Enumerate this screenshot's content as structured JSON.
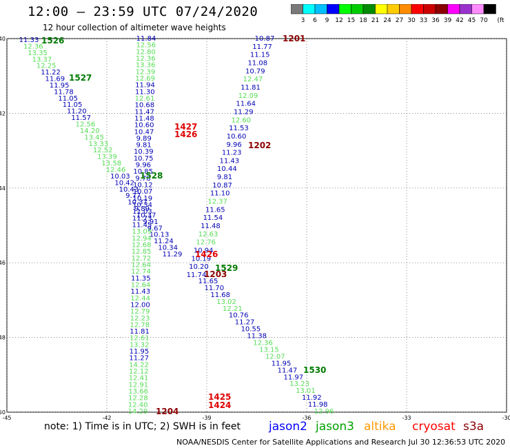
{
  "header": {
    "title": "12:00 – 23:59 UTC 07/24/2020",
    "subtitle": "12 hour collection of altimeter wave heights"
  },
  "colorbar": {
    "unit": "(ft)",
    "ticks": [
      "3",
      "6",
      "9",
      "12",
      "15",
      "18",
      "21",
      "24",
      "27",
      "30",
      "33",
      "36",
      "39",
      "42",
      "45",
      "70"
    ],
    "colors": [
      "#7a7a7a",
      "#00ffff",
      "#00bfff",
      "#0000ff",
      "#00ff00",
      "#00cd00",
      "#008b00",
      "#ffff00",
      "#ffcc00",
      "#ff8c00",
      "#ff0000",
      "#cc0000",
      "#8b0000",
      "#ff00ff",
      "#9932cc",
      "#ff8cff",
      "#000000"
    ]
  },
  "axes": {
    "lat_labels": [
      "-40",
      "-42",
      "-44",
      "-46",
      "-48",
      "-50"
    ],
    "lon_labels": [
      "-45",
      "-42",
      "-39",
      "-36",
      "-33",
      "-30"
    ]
  },
  "legend": {
    "note": "note:  1) Time is in UTC;  2) SWH is in feet",
    "items": [
      {
        "label": "jason2",
        "color": "#0000ff"
      },
      {
        "label": "jason3",
        "color": "#00a000"
      },
      {
        "label": "altika",
        "color": "#ff9900"
      },
      {
        "label": "cryosat",
        "color": "#ff0000"
      },
      {
        "label": "s3a",
        "color": "#8b0000"
      }
    ]
  },
  "credit": "NOAA/NESDIS Center for Satellite Applications and Research    Jul 30 12:36:53 UTC 2020",
  "tracks": [
    {
      "id": "t1526",
      "label": "1526",
      "label_color": "#007a00",
      "start": [
        -44.3,
        -40.05
      ],
      "end": [
        -38.6,
        -46.2
      ],
      "values": [
        {
          "v": "11.33",
          "c": "#0000b4"
        },
        {
          "v": "12.36",
          "c": "#55dd55"
        },
        {
          "v": "13.35",
          "c": "#55dd55"
        },
        {
          "v": "13.37",
          "c": "#55dd55"
        },
        {
          "v": "12.25",
          "c": "#55dd55"
        },
        {
          "v": "11.22",
          "c": "#0000b4"
        },
        {
          "v": "11.69",
          "c": "#0000b4"
        },
        {
          "v": "11.95",
          "c": "#0000b4"
        },
        {
          "v": "11.78",
          "c": "#0000b4"
        },
        {
          "v": "11.05",
          "c": "#0000b4"
        },
        {
          "v": "11.05",
          "c": "#0000b4"
        },
        {
          "v": "11.20",
          "c": "#0000b4"
        },
        {
          "v": "11.57",
          "c": "#0000b4"
        },
        {
          "v": "12.56",
          "c": "#55dd55"
        },
        {
          "v": "14.20",
          "c": "#55dd55"
        },
        {
          "v": "13.45",
          "c": "#55dd55"
        },
        {
          "v": "13.33",
          "c": "#55dd55"
        },
        {
          "v": "12.52",
          "c": "#55dd55"
        },
        {
          "v": "13.39",
          "c": "#55dd55"
        },
        {
          "v": "13.58",
          "c": "#55dd55"
        },
        {
          "v": "12.46",
          "c": "#55dd55"
        },
        {
          "v": "10.03",
          "c": "#0000b4"
        },
        {
          "v": "10.42",
          "c": "#0000b4"
        },
        {
          "v": "10.43",
          "c": "#0000b4"
        },
        {
          "v": "9.77",
          "c": "#0000b4"
        },
        {
          "v": "10.37",
          "c": "#0000b4"
        },
        {
          "v": "9.89",
          "c": "#0000b4"
        },
        {
          "v": "10.37",
          "c": "#0000b4"
        },
        {
          "v": "9.91",
          "c": "#0000b4"
        },
        {
          "v": "9.67",
          "c": "#0000b4"
        },
        {
          "v": "10.13",
          "c": "#0000b4"
        },
        {
          "v": "11.24",
          "c": "#0000b4"
        },
        {
          "v": "10.34",
          "c": "#0000b4"
        },
        {
          "v": "11.29",
          "c": "#0000b4"
        }
      ]
    },
    {
      "id": "t1527",
      "label": "1527",
      "label_color": "#007a00",
      "start": [
        -43.35,
        -40.55
      ],
      "end": [
        -43.35,
        -40.55
      ],
      "values": []
    },
    {
      "id": "t1528",
      "label": "1528",
      "label_color": "#007a00",
      "start": [
        -41.0,
        -43.85
      ],
      "end": [
        -41.0,
        -43.85
      ],
      "values": []
    },
    {
      "id": "t1529",
      "label": "1529",
      "label_color": "#007a00",
      "start": [
        -38.7,
        -46.3
      ],
      "end": [
        -38.7,
        -46.3
      ],
      "values": []
    },
    {
      "id": "t1530",
      "label": "1530",
      "label_color": "#007a00",
      "start": [
        -35.9,
        -49.0
      ],
      "end": [
        -35.9,
        -49.0
      ],
      "values": []
    },
    {
      "id": "t1201",
      "label": "1201",
      "label_color": "#8b0000",
      "start": [
        -36.3,
        -40.05
      ],
      "end": [
        -36.3,
        -40.05
      ],
      "values": []
    },
    {
      "id": "t1202",
      "label": "1202",
      "label_color": "#8b0000",
      "start": [
        -37.05,
        -42.95
      ],
      "end": [
        -37.05,
        -42.95
      ],
      "values": []
    },
    {
      "id": "t1203",
      "label": "1203",
      "label_color": "#8b0000",
      "start": [
        -39.0,
        -46.55
      ],
      "end": [
        -39.0,
        -46.55
      ],
      "values": []
    },
    {
      "id": "t1204",
      "label": "1204",
      "label_color": "#8b0000",
      "start": [
        -40.5,
        -50.0
      ],
      "end": [
        -40.5,
        -50.0
      ],
      "values": []
    },
    {
      "id": "t1427",
      "label": "1427",
      "label_color": "#e00000",
      "start": [
        -40.05,
        -42.45
      ],
      "end": [
        -40.05,
        -42.45
      ],
      "values": []
    },
    {
      "id": "t1426a",
      "label": "1426",
      "label_color": "#e00000",
      "start": [
        -40.05,
        -42.65
      ],
      "end": [
        -40.05,
        -42.65
      ],
      "values": []
    },
    {
      "id": "t1426b",
      "label": "1426",
      "label_color": "#e00000",
      "start": [
        -39.55,
        -45.95
      ],
      "end": [
        -39.55,
        -45.95
      ],
      "values": []
    },
    {
      "id": "t1425",
      "label": "1425",
      "label_color": "#e00000",
      "start": [
        -38.9,
        -49.65
      ],
      "end": [
        -38.9,
        -49.65
      ],
      "values": []
    },
    {
      "id": "t1424",
      "label": "1424",
      "label_color": "#e00000",
      "start": [
        -38.9,
        -49.85
      ],
      "end": [
        -38.9,
        -49.85
      ],
      "values": []
    }
  ],
  "track_values": {
    "jason3_left": [
      {
        "v": "11.84",
        "c": "#0000b4"
      },
      {
        "v": "12.56",
        "c": "#55dd55"
      },
      {
        "v": "12.80",
        "c": "#55dd55"
      },
      {
        "v": "12.36",
        "c": "#55dd55"
      },
      {
        "v": "13.36",
        "c": "#55dd55"
      },
      {
        "v": "12.39",
        "c": "#55dd55"
      },
      {
        "v": "12.69",
        "c": "#55dd55"
      },
      {
        "v": "11.94",
        "c": "#0000b4"
      },
      {
        "v": "11.30",
        "c": "#0000b4"
      },
      {
        "v": "12.61",
        "c": "#55dd55"
      },
      {
        "v": "10.68",
        "c": "#0000b4"
      },
      {
        "v": "11.47",
        "c": "#0000b4"
      },
      {
        "v": "11.48",
        "c": "#0000b4"
      },
      {
        "v": "10.60",
        "c": "#0000b4"
      },
      {
        "v": "10.47",
        "c": "#0000b4"
      },
      {
        "v": "9.89",
        "c": "#0000b4"
      },
      {
        "v": "9.81",
        "c": "#0000b4"
      },
      {
        "v": "10.39",
        "c": "#0000b4"
      },
      {
        "v": "10.75",
        "c": "#0000b4"
      },
      {
        "v": "9.96",
        "c": "#0000b4"
      },
      {
        "v": "10.85",
        "c": "#0000b4"
      },
      {
        "v": "9.78",
        "c": "#0000b4"
      },
      {
        "v": "10.12",
        "c": "#0000b4"
      },
      {
        "v": "10.07",
        "c": "#0000b4"
      },
      {
        "v": "10.19",
        "c": "#0000b4"
      },
      {
        "v": "10.34",
        "c": "#0000b4"
      },
      {
        "v": "11.03",
        "c": "#0000b4"
      },
      {
        "v": "11.73",
        "c": "#0000b4"
      },
      {
        "v": "11.45",
        "c": "#0000b4"
      },
      {
        "v": "13.09",
        "c": "#55dd55"
      },
      {
        "v": "12.94",
        "c": "#55dd55"
      },
      {
        "v": "12.68",
        "c": "#55dd55"
      },
      {
        "v": "12.85",
        "c": "#55dd55"
      },
      {
        "v": "12.72",
        "c": "#55dd55"
      },
      {
        "v": "12.64",
        "c": "#55dd55"
      },
      {
        "v": "12.74",
        "c": "#55dd55"
      },
      {
        "v": "11.35",
        "c": "#0000b4"
      },
      {
        "v": "12.64",
        "c": "#55dd55"
      },
      {
        "v": "11.43",
        "c": "#0000b4"
      },
      {
        "v": "12.44",
        "c": "#55dd55"
      },
      {
        "v": "12.00",
        "c": "#0000b4"
      },
      {
        "v": "12.79",
        "c": "#55dd55"
      },
      {
        "v": "12.23",
        "c": "#55dd55"
      },
      {
        "v": "12.78",
        "c": "#55dd55"
      },
      {
        "v": "11.81",
        "c": "#0000b4"
      },
      {
        "v": "12.61",
        "c": "#55dd55"
      },
      {
        "v": "13.32",
        "c": "#55dd55"
      },
      {
        "v": "11.95",
        "c": "#0000b4"
      },
      {
        "v": "11.27",
        "c": "#0000b4"
      },
      {
        "v": "14.22",
        "c": "#55dd55"
      },
      {
        "v": "12.12",
        "c": "#55dd55"
      },
      {
        "v": "12.41",
        "c": "#55dd55"
      },
      {
        "v": "12.91",
        "c": "#55dd55"
      },
      {
        "v": "13.66",
        "c": "#55dd55"
      },
      {
        "v": "12.28",
        "c": "#55dd55"
      },
      {
        "v": "12.40",
        "c": "#55dd55"
      },
      {
        "v": "14.29",
        "c": "#55dd55"
      }
    ],
    "right_track": [
      {
        "v": "10.87",
        "c": "#0000b4"
      },
      {
        "v": "11.77",
        "c": "#0000b4"
      },
      {
        "v": "11.15",
        "c": "#0000b4"
      },
      {
        "v": "11.08",
        "c": "#0000b4"
      },
      {
        "v": "10.79",
        "c": "#0000b4"
      },
      {
        "v": "12.47",
        "c": "#55dd55"
      },
      {
        "v": "11.81",
        "c": "#0000b4"
      },
      {
        "v": "12.09",
        "c": "#55dd55"
      },
      {
        "v": "11.64",
        "c": "#0000b4"
      },
      {
        "v": "11.29",
        "c": "#0000b4"
      },
      {
        "v": "12.60",
        "c": "#55dd55"
      },
      {
        "v": "11.53",
        "c": "#0000b4"
      },
      {
        "v": "10.60",
        "c": "#0000b4"
      },
      {
        "v": "9.96",
        "c": "#0000b4"
      },
      {
        "v": "11.23",
        "c": "#0000b4"
      },
      {
        "v": "11.43",
        "c": "#0000b4"
      },
      {
        "v": "10.44",
        "c": "#0000b4"
      },
      {
        "v": "9.81",
        "c": "#0000b4"
      },
      {
        "v": "10.87",
        "c": "#0000b4"
      },
      {
        "v": "11.10",
        "c": "#0000b4"
      },
      {
        "v": "12.37",
        "c": "#55dd55"
      },
      {
        "v": "11.65",
        "c": "#0000b4"
      },
      {
        "v": "11.54",
        "c": "#0000b4"
      },
      {
        "v": "11.48",
        "c": "#0000b4"
      },
      {
        "v": "12.63",
        "c": "#55dd55"
      },
      {
        "v": "12.76",
        "c": "#55dd55"
      },
      {
        "v": "10.94",
        "c": "#0000b4"
      },
      {
        "v": "10.19",
        "c": "#0000b4"
      },
      {
        "v": "10.20",
        "c": "#0000b4"
      },
      {
        "v": "11.74",
        "c": "#0000b4"
      }
    ],
    "lower_right_track": [
      {
        "v": "11.65",
        "c": "#0000b4"
      },
      {
        "v": "11.70",
        "c": "#0000b4"
      },
      {
        "v": "11.68",
        "c": "#0000b4"
      },
      {
        "v": "13.02",
        "c": "#55dd55"
      },
      {
        "v": "12.21",
        "c": "#55dd55"
      },
      {
        "v": "10.76",
        "c": "#0000b4"
      },
      {
        "v": "11.27",
        "c": "#0000b4"
      },
      {
        "v": "10.55",
        "c": "#0000b4"
      },
      {
        "v": "11.38",
        "c": "#0000b4"
      },
      {
        "v": "12.36",
        "c": "#55dd55"
      },
      {
        "v": "13.15",
        "c": "#55dd55"
      },
      {
        "v": "12.07",
        "c": "#55dd55"
      },
      {
        "v": "11.95",
        "c": "#0000b4"
      },
      {
        "v": "11.47",
        "c": "#0000b4"
      },
      {
        "v": "11.97",
        "c": "#0000b4"
      },
      {
        "v": "13.23",
        "c": "#55dd55"
      },
      {
        "v": "13.01",
        "c": "#55dd55"
      },
      {
        "v": "11.92",
        "c": "#0000b4"
      },
      {
        "v": "11.98",
        "c": "#0000b4"
      },
      {
        "v": "12.96",
        "c": "#55dd55"
      }
    ]
  }
}
